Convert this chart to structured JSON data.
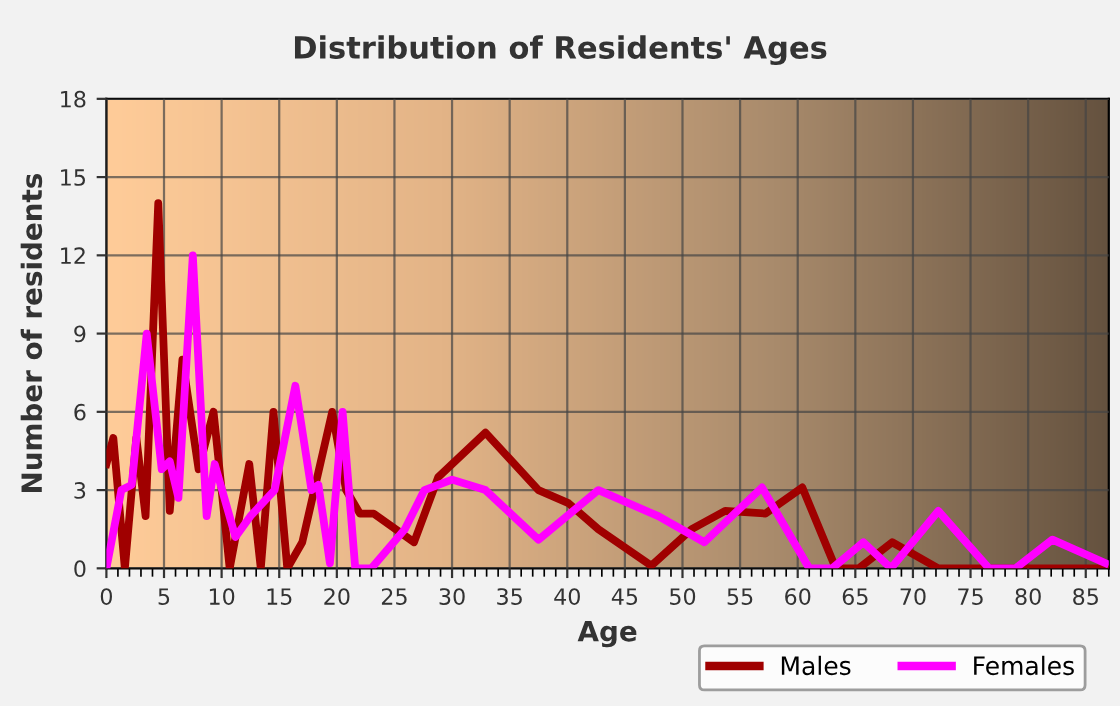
{
  "chart_data": {
    "type": "line",
    "title": "Distribution of Residents' Ages",
    "xlabel": "Age",
    "ylabel": "Number of residents",
    "xlim": [
      0,
      87
    ],
    "xticks": [
      0,
      5,
      10,
      15,
      20,
      25,
      30,
      35,
      40,
      45,
      50,
      55,
      60,
      65,
      70,
      75,
      80,
      85
    ],
    "ylim": [
      0,
      18
    ],
    "yticks": [
      0,
      3,
      6,
      9,
      12,
      15,
      18
    ],
    "grid": true,
    "legend": "bottom right",
    "marker": "none",
    "line_style": "solid",
    "series": [
      {
        "name": "Males",
        "color": "#a00000",
        "x": [
          0,
          0.6,
          1.6,
          2.6,
          3.4,
          4.5,
          5.5,
          6.6,
          8,
          9.3,
          10.7,
          12.4,
          13.4,
          14.5,
          15.7,
          17,
          19.6,
          20.8,
          22,
          23.2,
          26.7,
          28.8,
          32.9,
          37.5,
          40.1,
          42.7,
          47.3,
          50.8,
          53.7,
          57.2,
          60.4,
          63.3,
          65.3,
          68.2,
          72.2,
          80,
          87
        ],
        "values": [
          4,
          5,
          0,
          5,
          2,
          14,
          2.2,
          8,
          3.8,
          6,
          0,
          4,
          0,
          6,
          0,
          1,
          6,
          3,
          2.1,
          2.1,
          1,
          3.5,
          5.2,
          3,
          2.5,
          1.5,
          0.1,
          1.5,
          2.2,
          2.1,
          3.1,
          0,
          0,
          1,
          0,
          0,
          0
        ]
      },
      {
        "name": "Females",
        "color": "#ff00ff",
        "x": [
          0,
          1.3,
          2.2,
          3.5,
          4.8,
          5.5,
          6.25,
          7.5,
          8.7,
          9.4,
          11.2,
          12.5,
          14.6,
          16.4,
          17.8,
          18.4,
          19.4,
          20.5,
          21.6,
          23,
          25.9,
          27.6,
          30,
          32.9,
          37.5,
          42.7,
          47.9,
          51.9,
          56.9,
          61,
          63,
          65.7,
          68.1,
          72.2,
          76.6,
          78.9,
          82.1,
          86.7
        ],
        "values": [
          0,
          3,
          3.2,
          9,
          3.8,
          4.1,
          2.7,
          12,
          2,
          4,
          1.2,
          2,
          3,
          7,
          3,
          3.2,
          0.2,
          6,
          0,
          0,
          1.5,
          3,
          3.4,
          3,
          1.1,
          3,
          2,
          1,
          3.1,
          0,
          0,
          1,
          0,
          2.2,
          0,
          0,
          1.1,
          0.2
        ]
      }
    ]
  }
}
